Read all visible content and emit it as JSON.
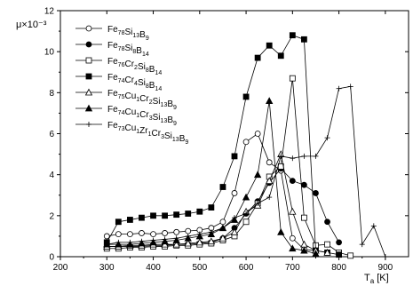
{
  "chart_data": {
    "type": "line",
    "xlabel": "T_a [K]",
    "ylabel": "μ×10⁻³",
    "xlim": [
      200,
      950
    ],
    "ylim": [
      0,
      12
    ],
    "x_ticks": [
      200,
      300,
      400,
      500,
      600,
      700,
      800,
      900
    ],
    "y_ticks": [
      0,
      2,
      4,
      6,
      8,
      10,
      12
    ],
    "legend_position": "top-left",
    "series": [
      {
        "name": "Fe78Si13B9",
        "legend_parts": [
          [
            "Fe",
            "78"
          ],
          [
            "Si",
            "13"
          ],
          [
            "B",
            "9"
          ]
        ],
        "marker": "circle-open",
        "x": [
          300,
          325,
          350,
          375,
          400,
          425,
          450,
          475,
          500,
          525,
          550,
          575,
          600,
          625,
          650,
          675,
          700,
          725,
          750
        ],
        "y": [
          1.0,
          1.1,
          1.1,
          1.15,
          1.1,
          1.15,
          1.2,
          1.25,
          1.3,
          1.4,
          1.7,
          3.1,
          5.6,
          6.0,
          4.6,
          4.2,
          0.9,
          0.35,
          0.3
        ]
      },
      {
        "name": "Fe78Si8B14",
        "legend_parts": [
          [
            "Fe",
            "78"
          ],
          [
            "Si",
            "8"
          ],
          [
            "B",
            "14"
          ]
        ],
        "marker": "circle-filled",
        "x": [
          300,
          325,
          350,
          375,
          400,
          425,
          450,
          475,
          500,
          525,
          550,
          575,
          600,
          625,
          650,
          675,
          700,
          725,
          750,
          775,
          800
        ],
        "y": [
          0.5,
          0.5,
          0.5,
          0.5,
          0.55,
          0.55,
          0.6,
          0.6,
          0.65,
          0.7,
          0.9,
          1.4,
          2.1,
          2.7,
          3.6,
          4.3,
          3.7,
          3.5,
          3.1,
          1.7,
          0.7
        ]
      },
      {
        "name": "Fe76Cr2Si8B14",
        "legend_parts": [
          [
            "Fe",
            "76"
          ],
          [
            "Cr",
            "2"
          ],
          [
            "Si",
            "8"
          ],
          [
            "B",
            "14"
          ]
        ],
        "marker": "square-open",
        "x": [
          300,
          325,
          350,
          375,
          400,
          425,
          450,
          475,
          500,
          525,
          550,
          575,
          600,
          625,
          650,
          675,
          700,
          725,
          750,
          775,
          800,
          825
        ],
        "y": [
          0.4,
          0.4,
          0.45,
          0.45,
          0.5,
          0.5,
          0.55,
          0.55,
          0.6,
          0.65,
          0.8,
          1.0,
          1.7,
          2.6,
          3.9,
          4.4,
          8.7,
          1.9,
          0.55,
          0.6,
          0.2,
          0.05
        ]
      },
      {
        "name": "Fe74Cr4Si8B14",
        "legend_parts": [
          [
            "Fe",
            "74"
          ],
          [
            "Cr",
            "4"
          ],
          [
            "Si",
            "8"
          ],
          [
            "B",
            "14"
          ]
        ],
        "marker": "square-filled",
        "x": [
          300,
          325,
          350,
          375,
          400,
          425,
          450,
          475,
          500,
          525,
          550,
          575,
          600,
          625,
          650,
          675,
          700,
          725,
          750,
          775,
          800
        ],
        "y": [
          0.7,
          1.7,
          1.8,
          1.9,
          2.0,
          2.0,
          2.05,
          2.1,
          2.2,
          2.4,
          3.4,
          4.9,
          7.8,
          9.7,
          10.3,
          9.8,
          10.8,
          10.6,
          0.3,
          0.2,
          0.1
        ]
      },
      {
        "name": "Fe75Cu1Cr2Si13B9",
        "legend_parts": [
          [
            "Fe",
            "75"
          ],
          [
            "Cu",
            "1"
          ],
          [
            "Cr",
            "2"
          ],
          [
            "Si",
            "13"
          ],
          [
            "B",
            "9"
          ]
        ],
        "marker": "triangle-open",
        "x": [
          300,
          325,
          350,
          375,
          400,
          425,
          450,
          475,
          500,
          525,
          550,
          575,
          600,
          625,
          650,
          675,
          700,
          725,
          750,
          775
        ],
        "y": [
          0.5,
          0.5,
          0.55,
          0.55,
          0.6,
          0.6,
          0.6,
          0.65,
          0.7,
          0.75,
          0.9,
          1.2,
          2.2,
          2.5,
          3.7,
          5.0,
          2.2,
          0.6,
          0.3,
          0.2
        ]
      },
      {
        "name": "Fe74Cu1Cr3Si13B9",
        "legend_parts": [
          [
            "Fe",
            "74"
          ],
          [
            "Cu",
            "1"
          ],
          [
            "Cr",
            "3"
          ],
          [
            "Si",
            "13"
          ],
          [
            "B",
            "9"
          ]
        ],
        "marker": "triangle-filled",
        "x": [
          300,
          325,
          350,
          375,
          400,
          425,
          450,
          475,
          500,
          525,
          550,
          575,
          600,
          625,
          650,
          675,
          700,
          725,
          750
        ],
        "y": [
          0.6,
          0.6,
          0.6,
          0.65,
          0.7,
          0.75,
          0.8,
          0.9,
          1.0,
          1.1,
          1.4,
          1.8,
          2.9,
          4.0,
          7.6,
          1.2,
          0.4,
          0.3,
          0.15
        ]
      },
      {
        "name": "Fe73Cu1Zr1Cr3Si13B9",
        "legend_parts": [
          [
            "Fe",
            "73"
          ],
          [
            "Cu",
            "1"
          ],
          [
            "Zr",
            "1"
          ],
          [
            "Cr",
            "3"
          ],
          [
            "Si",
            "13"
          ],
          [
            "B",
            "9"
          ]
        ],
        "marker": "plus",
        "x": [
          300,
          325,
          350,
          375,
          400,
          425,
          450,
          475,
          500,
          525,
          550,
          575,
          600,
          625,
          650,
          675,
          700,
          725,
          750,
          775,
          800,
          825,
          850,
          875,
          900
        ],
        "y": [
          0.6,
          0.7,
          0.7,
          0.75,
          0.8,
          0.85,
          0.9,
          1.0,
          1.1,
          1.2,
          1.4,
          1.9,
          2.1,
          2.6,
          2.9,
          4.9,
          4.8,
          4.9,
          4.9,
          5.8,
          8.2,
          8.3,
          0.6,
          1.5,
          0.0
        ]
      }
    ]
  }
}
